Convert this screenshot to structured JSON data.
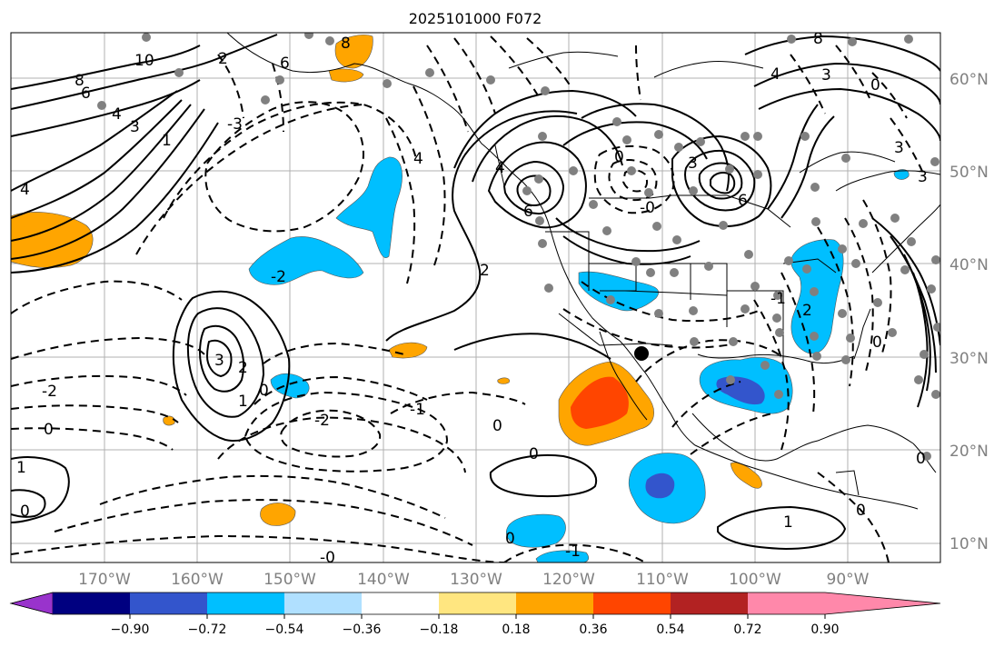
{
  "title": "2025101000 F072",
  "lon_labels": [
    "170°W",
    "160°W",
    "150°W",
    "140°W",
    "130°W",
    "120°W",
    "110°W",
    "100°W",
    "90°W"
  ],
  "lat_labels": [
    "60°N",
    "50°N",
    "40°N",
    "30°N",
    "20°N",
    "10°N"
  ],
  "colorbar": {
    "ticks": [
      "−0.90",
      "−0.72",
      "−0.54",
      "−0.36",
      "−0.18",
      "0.18",
      "0.36",
      "0.54",
      "0.72",
      "0.90"
    ],
    "colors": [
      "#9933cc",
      "#000080",
      "#3355cc",
      "#00bfff",
      "#b0e0ff",
      "#ffffff",
      "#ffe680",
      "#ffa500",
      "#ff4500",
      "#b22222",
      "#ff88aa"
    ]
  },
  "contour_labels": [
    "8",
    "10",
    "6",
    "4",
    "2",
    "3",
    "1",
    "4",
    "-2",
    "-3",
    "6",
    "8",
    "4",
    "3",
    "0",
    "-2",
    "-1",
    "6",
    "4",
    "2",
    "3",
    "1",
    "-0",
    "-2",
    "-1",
    "0",
    "-2",
    "-1",
    "0",
    "1",
    "-0",
    "3",
    "2",
    "1",
    "0",
    "0",
    "1",
    "-1",
    "0"
  ],
  "station_marker": "black-dot"
}
